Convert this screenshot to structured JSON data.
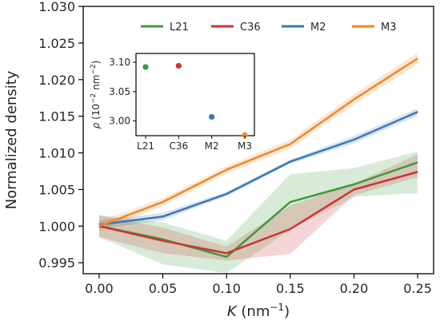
{
  "chart_data": [
    {
      "type": "line",
      "xlabel_symbol": "K",
      "xlabel_unit": " (nm",
      "xlabel_exp": "−1",
      "xlabel_close": ")",
      "ylabel": "Normalized density",
      "xlim": [
        -0.0125,
        0.2625
      ],
      "ylim": [
        0.9935,
        1.03
      ],
      "xticks": [
        0.0,
        0.05,
        0.1,
        0.15,
        0.2,
        0.25
      ],
      "xtick_labels": [
        "0.00",
        "0.05",
        "0.10",
        "0.15",
        "0.20",
        "0.25"
      ],
      "yticks": [
        0.995,
        1.0,
        1.005,
        1.01,
        1.015,
        1.02,
        1.025,
        1.03
      ],
      "ytick_labels": [
        "0.995",
        "1.000",
        "1.005",
        "1.010",
        "1.015",
        "1.020",
        "1.025",
        "1.030"
      ],
      "legend_position": "top-center",
      "x": [
        0.0,
        0.05,
        0.1,
        0.15,
        0.2,
        0.25
      ],
      "series": [
        {
          "name": "L21",
          "color": "#3a9a3a",
          "values": [
            1.0,
            0.9982,
            0.9958,
            1.0033,
            1.0057,
            1.0087
          ],
          "lower": [
            0.9985,
            0.9948,
            0.9936,
            0.9995,
            1.004,
            1.0045
          ],
          "upper": [
            1.0015,
            1.0005,
            0.998,
            1.0071,
            1.0079,
            1.0102
          ]
        },
        {
          "name": "C36",
          "color": "#cc3333",
          "values": [
            1.0,
            0.998,
            0.9963,
            0.9996,
            1.005,
            1.0074
          ],
          "lower": [
            0.9985,
            0.9963,
            0.9953,
            0.9962,
            1.0042,
            1.0067
          ],
          "upper": [
            1.0015,
            0.9998,
            0.9972,
            1.0028,
            1.0058,
            1.0098
          ]
        },
        {
          "name": "M2",
          "color": "#3a78b5",
          "values": [
            1.0002,
            1.0013,
            1.0044,
            1.0088,
            1.0118,
            1.0156
          ],
          "lower": [
            0.9996,
            1.0008,
            1.0041,
            1.0085,
            1.0113,
            1.0151
          ],
          "upper": [
            1.0008,
            1.0018,
            1.0047,
            1.0091,
            1.0123,
            1.0161
          ]
        },
        {
          "name": "M3",
          "color": "#f0872a",
          "values": [
            1.0,
            1.0033,
            1.0077,
            1.0112,
            1.0173,
            1.0229
          ],
          "lower": [
            0.9993,
            1.0028,
            1.0072,
            1.0106,
            1.0166,
            1.0221
          ],
          "upper": [
            1.0007,
            1.0038,
            1.0082,
            1.0118,
            1.018,
            1.0237
          ]
        }
      ]
    },
    {
      "type": "scatter",
      "inset": true,
      "categories": [
        "L21",
        "C36",
        "M2",
        "M3"
      ],
      "ylabel_symbol": "ρ",
      "ylabel_unit": " (10",
      "ylabel_exp1": "−2",
      "ylabel_mid": " nm",
      "ylabel_exp2": "−2",
      "ylabel_close": ")",
      "ylim": [
        2.975,
        3.115
      ],
      "yticks": [
        3.0,
        3.05,
        3.1
      ],
      "ytick_labels": [
        "3.00",
        "3.05",
        "3.10"
      ],
      "values": [
        3.092,
        3.094,
        3.007,
        2.976
      ],
      "errors": [
        0.004,
        0.003,
        0.001,
        0.001
      ],
      "colors": [
        "#3a9a3a",
        "#cc3333",
        "#3a78b5",
        "#f0872a"
      ]
    }
  ]
}
